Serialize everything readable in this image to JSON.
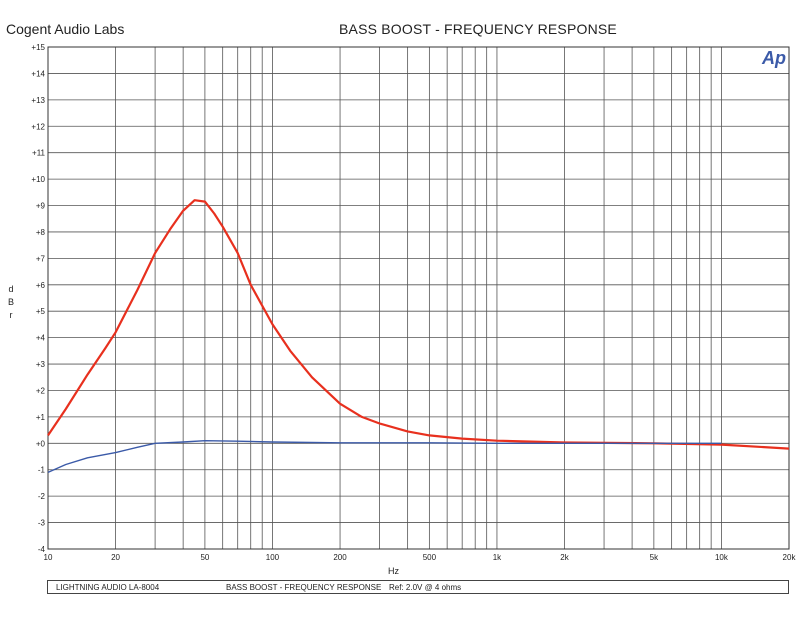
{
  "header": {
    "company": "Cogent Audio Labs",
    "title": "BASS BOOST  -  FREQUENCY RESPONSE",
    "logo_text": "Ap"
  },
  "footer": {
    "device": "LIGHTNING AUDIO LA-8004",
    "subtitle": "BASS BOOST  -  FREQUENCY RESPONSE",
    "reference": "Ref: 2.0V @ 4 ohms"
  },
  "colors": {
    "series_red": "#e8301e",
    "series_blue": "#3b5aa8",
    "grid": "#555555",
    "logo": "#3b5aa8"
  },
  "chart_data": {
    "type": "line",
    "title": "BASS BOOST  -  FREQUENCY RESPONSE",
    "xlabel": "Hz",
    "ylabel": "dBr",
    "x_scale": "log",
    "xlim": [
      10,
      20000
    ],
    "ylim": [
      -4,
      15
    ],
    "grid": true,
    "x_tick_labels": [
      {
        "value": 10,
        "label": "10"
      },
      {
        "value": 20,
        "label": "20"
      },
      {
        "value": 50,
        "label": "50"
      },
      {
        "value": 100,
        "label": "100"
      },
      {
        "value": 200,
        "label": "200"
      },
      {
        "value": 500,
        "label": "500"
      },
      {
        "value": 1000,
        "label": "1k"
      },
      {
        "value": 2000,
        "label": "2k"
      },
      {
        "value": 5000,
        "label": "5k"
      },
      {
        "value": 10000,
        "label": "10k"
      },
      {
        "value": 20000,
        "label": "20k"
      }
    ],
    "y_tick_labels": [
      {
        "value": 15,
        "label": "+15"
      },
      {
        "value": 14,
        "label": "+14"
      },
      {
        "value": 13,
        "label": "+13"
      },
      {
        "value": 12,
        "label": "+12"
      },
      {
        "value": 11,
        "label": "+11"
      },
      {
        "value": 10,
        "label": "+10"
      },
      {
        "value": 9,
        "label": "+9"
      },
      {
        "value": 8,
        "label": "+8"
      },
      {
        "value": 7,
        "label": "+7"
      },
      {
        "value": 6,
        "label": "+6"
      },
      {
        "value": 5,
        "label": "+5"
      },
      {
        "value": 4,
        "label": "+4"
      },
      {
        "value": 3,
        "label": "+3"
      },
      {
        "value": 2,
        "label": "+2"
      },
      {
        "value": 1,
        "label": "+1"
      },
      {
        "value": 0,
        "label": "+0"
      },
      {
        "value": -1,
        "label": "-1"
      },
      {
        "value": -2,
        "label": "-2"
      },
      {
        "value": -3,
        "label": "-3"
      },
      {
        "value": -4,
        "label": "-4"
      }
    ],
    "series": [
      {
        "color": "#e8301e",
        "points": [
          [
            10,
            0.3
          ],
          [
            12,
            1.3
          ],
          [
            15,
            2.6
          ],
          [
            18,
            3.6
          ],
          [
            20,
            4.2
          ],
          [
            25,
            5.8
          ],
          [
            30,
            7.2
          ],
          [
            35,
            8.1
          ],
          [
            40,
            8.8
          ],
          [
            45,
            9.2
          ],
          [
            50,
            9.15
          ],
          [
            55,
            8.7
          ],
          [
            60,
            8.2
          ],
          [
            70,
            7.2
          ],
          [
            80,
            6.0
          ],
          [
            100,
            4.5
          ],
          [
            120,
            3.5
          ],
          [
            150,
            2.5
          ],
          [
            200,
            1.5
          ],
          [
            250,
            1.0
          ],
          [
            300,
            0.75
          ],
          [
            400,
            0.45
          ],
          [
            500,
            0.3
          ],
          [
            700,
            0.18
          ],
          [
            1000,
            0.1
          ],
          [
            2000,
            0.03
          ],
          [
            5000,
            0.0
          ],
          [
            10000,
            -0.05
          ],
          [
            20000,
            -0.2
          ]
        ]
      },
      {
        "color": "#3b5aa8",
        "points": [
          [
            10,
            -1.1
          ],
          [
            12,
            -0.8
          ],
          [
            15,
            -0.55
          ],
          [
            20,
            -0.35
          ],
          [
            25,
            -0.15
          ],
          [
            30,
            0.0
          ],
          [
            40,
            0.05
          ],
          [
            50,
            0.1
          ],
          [
            70,
            0.08
          ],
          [
            100,
            0.05
          ],
          [
            200,
            0.02
          ],
          [
            500,
            0.02
          ],
          [
            1000,
            0.0
          ],
          [
            2000,
            0.0
          ],
          [
            5000,
            0.0
          ],
          [
            10000,
            0.0
          ]
        ]
      }
    ]
  }
}
